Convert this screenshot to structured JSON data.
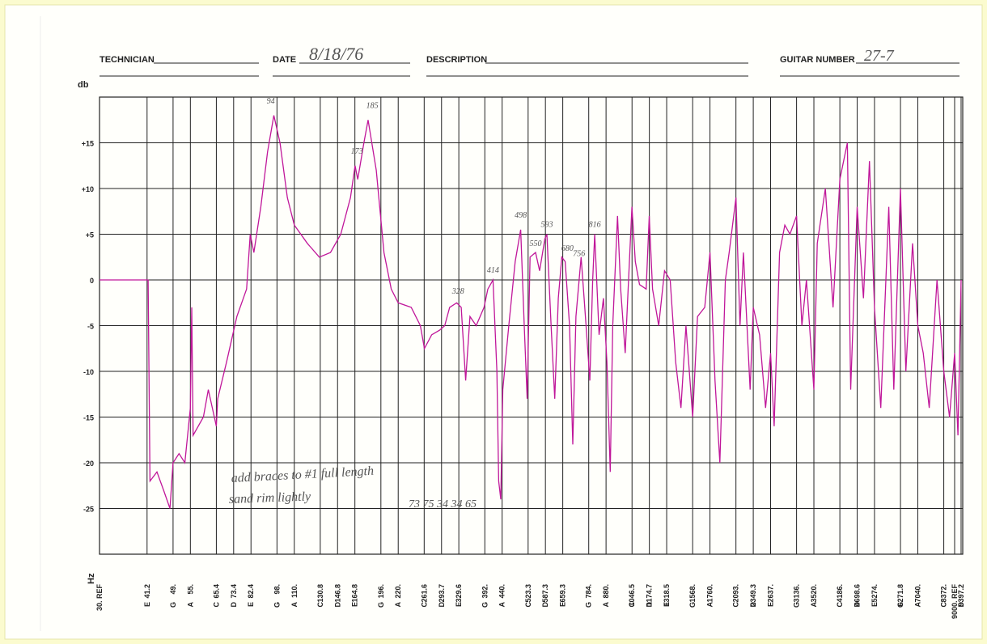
{
  "form": {
    "technician_label": "TECHNICIAN",
    "date_label": "DATE",
    "date": "8/18/76",
    "description_label": "DESCRIPTION",
    "guitar_number_label": "GUITAR NUMBER",
    "guitar_number": "27-7"
  },
  "chart_data": {
    "type": "line",
    "ylabel": "db",
    "xlabel": "Hz",
    "xscale": "log",
    "grid": true,
    "xlim": [
      30,
      9500
    ],
    "ylim": [
      -30,
      20
    ],
    "yticks": [
      {
        "value": 15,
        "label": "+15"
      },
      {
        "value": 10,
        "label": "+10"
      },
      {
        "value": 5,
        "label": "+5"
      },
      0,
      -5,
      -10,
      -15,
      -20,
      -25
    ],
    "xticks": [
      {
        "value": 30,
        "label": "30. REF"
      },
      41.2,
      {
        "value": 49,
        "label": "49."
      },
      {
        "value": 55,
        "label": "55."
      },
      65.4,
      73.4,
      82.4,
      {
        "value": 98,
        "label": "98."
      },
      {
        "value": 110,
        "label": "110."
      },
      130.8,
      146.8,
      164.8,
      {
        "value": 196,
        "label": "196."
      },
      {
        "value": 220,
        "label": "220."
      },
      261.6,
      293.7,
      329.6,
      {
        "value": 392,
        "label": "392."
      },
      {
        "value": 440,
        "label": "440."
      },
      523.3,
      587.3,
      659.3,
      {
        "value": 784,
        "label": "784."
      },
      {
        "value": 880,
        "label": "880."
      },
      1046.5,
      1174.7,
      1318.5,
      {
        "value": 1568,
        "label": "1568."
      },
      {
        "value": 1760,
        "label": "1760."
      },
      {
        "value": 2093,
        "label": "2093."
      },
      2349.3,
      {
        "value": 2637,
        "label": "2637."
      },
      {
        "value": 3136,
        "label": "3136."
      },
      {
        "value": 3520,
        "label": "3520."
      },
      {
        "value": 4186,
        "label": "4186."
      },
      4698.6,
      {
        "value": 5274,
        "label": "5274."
      },
      6271.8,
      {
        "value": 7040,
        "label": "7040."
      },
      {
        "value": 8372,
        "label": "8372."
      },
      {
        "value": 9000,
        "label": "9000. REF"
      },
      9397.2
    ],
    "notes": [
      null,
      "E",
      "G",
      "A",
      "C",
      "D",
      "E",
      "G",
      "A",
      "C",
      "D",
      "E",
      "G",
      "A",
      "C",
      "D",
      "E",
      "G",
      "A",
      "C",
      "D",
      "E",
      "G",
      "A",
      "C",
      "D",
      "E",
      "G",
      "A",
      "C",
      "D",
      "E",
      "G",
      "A",
      "C",
      "D",
      "E",
      "G",
      "A",
      "C",
      null,
      "D"
    ],
    "series": [
      {
        "color": "#c0179a",
        "x": [
          30,
          40,
          41.5,
          42,
          44,
          46,
          48,
          49,
          51,
          53,
          55,
          55.5,
          56,
          60,
          62,
          65.4,
          66,
          70,
          75,
          80,
          82,
          84,
          88,
          92,
          96,
          100,
          105,
          110,
          120,
          130,
          140,
          150,
          160,
          165,
          168,
          175,
          180,
          190,
          200,
          210,
          220,
          240,
          255,
          262,
          275,
          290,
          300,
          310,
          325,
          335,
          345,
          355,
          370,
          390,
          400,
          414,
          425,
          430,
          436,
          442,
          460,
          480,
          498,
          510,
          520,
          530,
          550,
          565,
          585,
          593,
          610,
          625,
          640,
          655,
          670,
          690,
          705,
          720,
          745,
          760,
          770,
          790,
          805,
          816,
          840,
          865,
          885,
          905,
          920,
          950,
          970,
          1000,
          1046,
          1070,
          1100,
          1150,
          1174,
          1200,
          1250,
          1300,
          1350,
          1400,
          1450,
          1500,
          1568,
          1620,
          1700,
          1760,
          1820,
          1880,
          1950,
          2000,
          2093,
          2150,
          2200,
          2300,
          2349,
          2450,
          2550,
          2637,
          2700,
          2800,
          2900,
          3000,
          3136,
          3250,
          3350,
          3520,
          3600,
          3800,
          4000,
          4186,
          4400,
          4500,
          4698,
          4900,
          5100,
          5274,
          5500,
          5800,
          6000,
          6271,
          6500,
          6800,
          7040,
          7300,
          7600,
          8000,
          8372,
          8700,
          9000,
          9200,
          9397
        ],
        "values": [
          0,
          0,
          0,
          -22,
          -21,
          -23,
          -25,
          -20,
          -19,
          -20,
          -14,
          -3,
          -17,
          -15,
          -12,
          -16,
          -13,
          -9,
          -4,
          -1,
          5,
          3,
          8,
          14,
          18,
          15,
          9,
          6,
          4,
          2.5,
          3,
          5,
          9,
          12.5,
          11,
          15,
          17.5,
          12,
          3,
          -1,
          -2.5,
          -3,
          -5,
          -7.5,
          -6,
          -5.5,
          -5,
          -3,
          -2.5,
          -3,
          -11,
          -4,
          -5,
          -3,
          -1,
          0,
          -10,
          -22,
          -24,
          -12,
          -5,
          2,
          5.5,
          -5,
          -13,
          2.5,
          3,
          1,
          4.5,
          5,
          -5,
          -13,
          -2,
          2.5,
          2,
          -5,
          -18,
          -4,
          2.5,
          -2,
          -5,
          -11,
          0,
          5,
          -6,
          -2,
          -9,
          -21,
          -5,
          7,
          -1,
          -8,
          8,
          2,
          -0.5,
          -1,
          7,
          -1,
          -5,
          1,
          0,
          -9,
          -14,
          -5,
          -15,
          -4,
          -3,
          3,
          -11,
          -20,
          0,
          3,
          9,
          -5,
          3,
          -12,
          -3,
          -6,
          -14,
          -8,
          -16,
          3,
          6,
          5,
          7,
          -5,
          0,
          -12,
          4,
          10,
          -3,
          11,
          15,
          -12,
          8,
          -2,
          13,
          -3,
          -14,
          8,
          -12,
          10,
          -10,
          4,
          -5,
          -8,
          -14,
          0,
          -10,
          -15,
          -8,
          -17,
          0
        ]
      }
    ],
    "annotations": [
      {
        "text": "94",
        "x": 94,
        "y": 19.3
      },
      {
        "text": "185",
        "x": 185,
        "y": 18.8
      },
      {
        "text": "173",
        "x": 167,
        "y": 13.8
      },
      {
        "text": "328",
        "x": 328,
        "y": -1.5
      },
      {
        "text": "414",
        "x": 414,
        "y": 0.8
      },
      {
        "text": "498",
        "x": 498,
        "y": 6.8
      },
      {
        "text": "550",
        "x": 550,
        "y": 3.7
      },
      {
        "text": "593",
        "x": 593,
        "y": 5.8
      },
      {
        "text": "680",
        "x": 680,
        "y": 3.2
      },
      {
        "text": "756",
        "x": 735,
        "y": 2.6
      },
      {
        "text": "816",
        "x": 816,
        "y": 5.8
      }
    ],
    "handwritten_notes": [
      "add braces to #1 full length",
      "sand rim lightly",
      "73 75 34 34 65"
    ]
  }
}
